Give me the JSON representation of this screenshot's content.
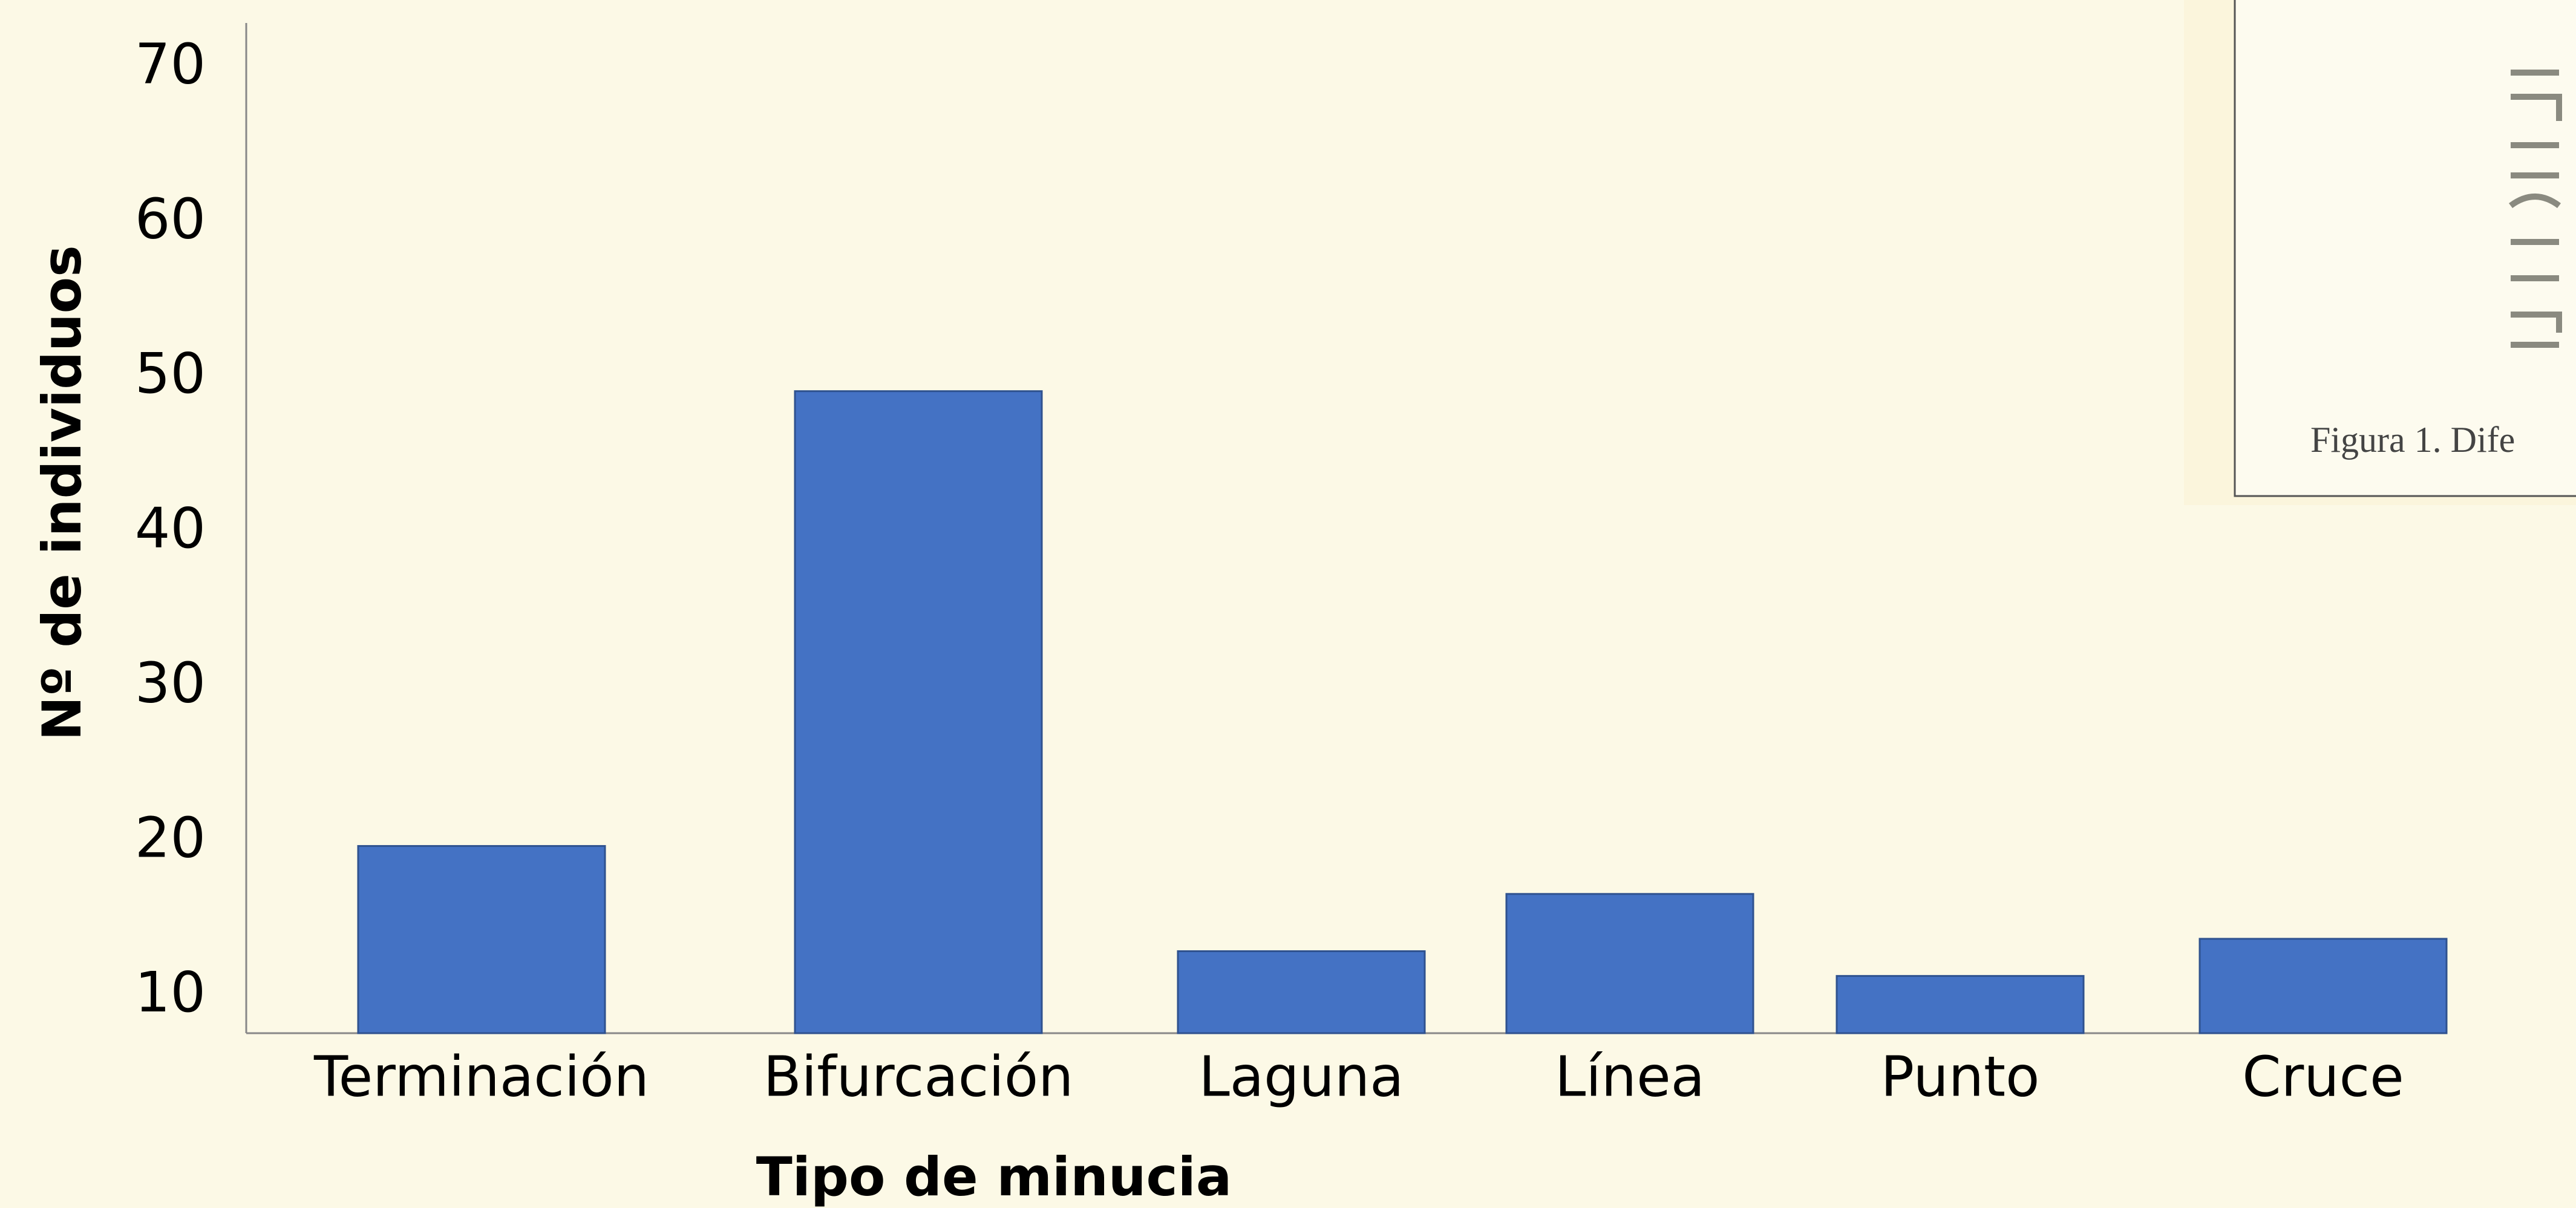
{
  "chart_data": {
    "type": "bar",
    "x_label": "Tipo de minucia",
    "y_label": "Nº de individuos",
    "categories": [
      "Terminación",
      "Bifurcación",
      "Laguna",
      "Línea",
      "Punto",
      "Cruce"
    ],
    "values": [
      19.7,
      49.1,
      12.9,
      16.6,
      11.3,
      13.7
    ],
    "color": "#4472c4",
    "ylim": [
      7.6,
      72.9
    ],
    "yticks": [
      10,
      20,
      30,
      40,
      50,
      60,
      70
    ],
    "grid": false,
    "annotation": "Figura 1. Dife"
  }
}
